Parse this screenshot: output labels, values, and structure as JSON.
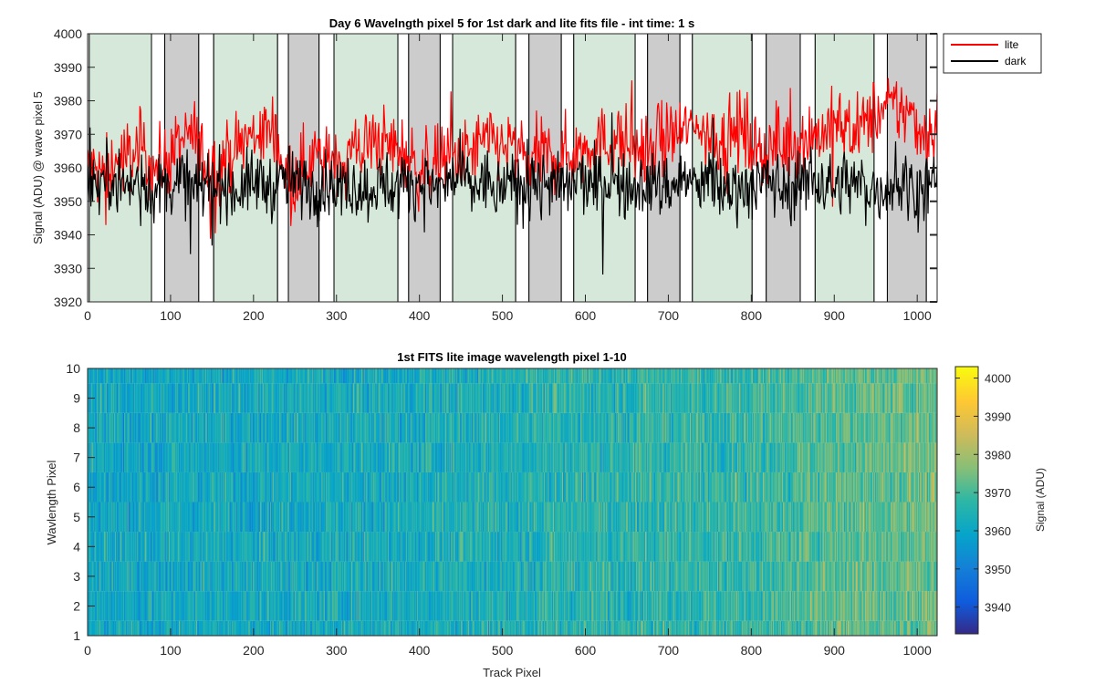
{
  "chart_data": [
    {
      "type": "line",
      "title": "Day 6 Wavelngth pixel 5 for 1st dark and lite fits file - int time: 1 s",
      "xlabel": "",
      "ylabel": "Signal (ADU) @ wave pixel 5",
      "xlim": [
        0,
        1024
      ],
      "ylim": [
        3920,
        4000
      ],
      "xticks": [
        0,
        100,
        200,
        300,
        400,
        500,
        600,
        700,
        800,
        900,
        1000
      ],
      "yticks": [
        3920,
        3930,
        3940,
        3950,
        3960,
        3970,
        3980,
        3990,
        4000
      ],
      "grid": false,
      "legend": "outside-top-right",
      "legend_entries": [
        "lite",
        "dark"
      ],
      "background_regions": [
        {
          "x": [
            2,
            77
          ],
          "color": "#d5e8d9"
        },
        {
          "x": [
            77,
            93
          ],
          "color": "#ffffff"
        },
        {
          "x": [
            93,
            134
          ],
          "color": "#cccccc"
        },
        {
          "x": [
            134,
            152
          ],
          "color": "#ffffff"
        },
        {
          "x": [
            152,
            229
          ],
          "color": "#d5e8d9"
        },
        {
          "x": [
            229,
            242
          ],
          "color": "#ffffff"
        },
        {
          "x": [
            242,
            279
          ],
          "color": "#cccccc"
        },
        {
          "x": [
            279,
            297
          ],
          "color": "#ffffff"
        },
        {
          "x": [
            297,
            374
          ],
          "color": "#d5e8d9"
        },
        {
          "x": [
            374,
            387
          ],
          "color": "#ffffff"
        },
        {
          "x": [
            387,
            425
          ],
          "color": "#cccccc"
        },
        {
          "x": [
            425,
            440
          ],
          "color": "#ffffff"
        },
        {
          "x": [
            440,
            516
          ],
          "color": "#d5e8d9"
        },
        {
          "x": [
            516,
            532
          ],
          "color": "#ffffff"
        },
        {
          "x": [
            532,
            571
          ],
          "color": "#cccccc"
        },
        {
          "x": [
            571,
            586
          ],
          "color": "#ffffff"
        },
        {
          "x": [
            586,
            660
          ],
          "color": "#d5e8d9"
        },
        {
          "x": [
            660,
            675
          ],
          "color": "#ffffff"
        },
        {
          "x": [
            675,
            714
          ],
          "color": "#cccccc"
        },
        {
          "x": [
            714,
            729
          ],
          "color": "#ffffff"
        },
        {
          "x": [
            729,
            801
          ],
          "color": "#d5e8d9"
        },
        {
          "x": [
            801,
            818
          ],
          "color": "#ffffff"
        },
        {
          "x": [
            818,
            859
          ],
          "color": "#cccccc"
        },
        {
          "x": [
            859,
            877
          ],
          "color": "#ffffff"
        },
        {
          "x": [
            877,
            948
          ],
          "color": "#d5e8d9"
        },
        {
          "x": [
            948,
            964
          ],
          "color": "#ffffff"
        },
        {
          "x": [
            964,
            1011
          ],
          "color": "#cccccc"
        },
        {
          "x": [
            1011,
            1024
          ],
          "color": "#ffffff"
        }
      ],
      "series": [
        {
          "name": "lite",
          "color": "#ff0000",
          "x": [
            0,
            16,
            32,
            48,
            64,
            80,
            96,
            112,
            128,
            144,
            160,
            176,
            192,
            208,
            224,
            240,
            256,
            272,
            288,
            304,
            320,
            336,
            352,
            368,
            384,
            400,
            416,
            432,
            448,
            464,
            480,
            496,
            512,
            528,
            544,
            560,
            576,
            592,
            608,
            624,
            640,
            656,
            672,
            688,
            704,
            720,
            736,
            752,
            768,
            784,
            800,
            816,
            832,
            848,
            864,
            880,
            896,
            912,
            928,
            944,
            960,
            976,
            992,
            1008,
            1024
          ],
          "y": [
            3960,
            3958,
            3961,
            3963,
            3966,
            3960,
            3962,
            3967,
            3970,
            3960,
            3961,
            3965,
            3969,
            3970,
            3972,
            3958,
            3959,
            3964,
            3961,
            3963,
            3965,
            3967,
            3968,
            3966,
            3964,
            3959,
            3961,
            3963,
            3962,
            3965,
            3968,
            3967,
            3966,
            3962,
            3964,
            3963,
            3964,
            3965,
            3968,
            3967,
            3969,
            3966,
            3965,
            3967,
            3970,
            3971,
            3973,
            3970,
            3969,
            3972,
            3968,
            3965,
            3966,
            3967,
            3969,
            3970,
            3972,
            3973,
            3971,
            3975,
            3977,
            3978,
            3976,
            3970,
            3972
          ]
        },
        {
          "name": "dark",
          "color": "#000000",
          "x": [
            0,
            16,
            32,
            48,
            64,
            80,
            96,
            112,
            128,
            144,
            160,
            176,
            192,
            208,
            224,
            240,
            256,
            272,
            288,
            304,
            320,
            336,
            352,
            368,
            384,
            400,
            416,
            432,
            448,
            464,
            480,
            496,
            512,
            528,
            544,
            560,
            576,
            592,
            608,
            624,
            640,
            656,
            672,
            688,
            704,
            720,
            736,
            752,
            768,
            784,
            800,
            816,
            832,
            848,
            864,
            880,
            896,
            912,
            928,
            944,
            960,
            976,
            992,
            1008,
            1024
          ],
          "y": [
            3957,
            3955,
            3958,
            3954,
            3956,
            3953,
            3955,
            3957,
            3954,
            3955,
            3956,
            3953,
            3955,
            3956,
            3954,
            3957,
            3955,
            3953,
            3956,
            3954,
            3955,
            3953,
            3956,
            3954,
            3955,
            3956,
            3953,
            3955,
            3957,
            3954,
            3956,
            3953,
            3955,
            3954,
            3956,
            3955,
            3953,
            3957,
            3954,
            3956,
            3955,
            3953,
            3956,
            3954,
            3955,
            3957,
            3954,
            3956,
            3953,
            3955,
            3954,
            3956,
            3955,
            3953,
            3955,
            3957,
            3954,
            3956,
            3955,
            3953,
            3954,
            3956,
            3955,
            3953,
            3957
          ]
        }
      ]
    },
    {
      "type": "heatmap",
      "title": "1st FITS lite image wavelength pixel 1-10",
      "xlabel": "Track Pixel",
      "ylabel": "Wavlength Pixel",
      "xlim": [
        0,
        1024
      ],
      "ylim": [
        1,
        10
      ],
      "xticks": [
        0,
        100,
        200,
        300,
        400,
        500,
        600,
        700,
        800,
        900,
        1000
      ],
      "yticks": [
        1,
        2,
        3,
        4,
        5,
        6,
        7,
        8,
        9,
        10
      ],
      "colorbar_label": "Signal (ADU)",
      "colorbar_range": [
        3933,
        4003
      ],
      "colorbar_ticks": [
        3940,
        3950,
        3960,
        3970,
        3980,
        3990,
        4000
      ],
      "colormap": "parula",
      "column_mean_trend": {
        "x": [
          0,
          200,
          400,
          600,
          800,
          900,
          1024
        ],
        "mean": [
          3961,
          3962,
          3963,
          3966,
          3968,
          3972,
          3974
        ]
      }
    }
  ]
}
